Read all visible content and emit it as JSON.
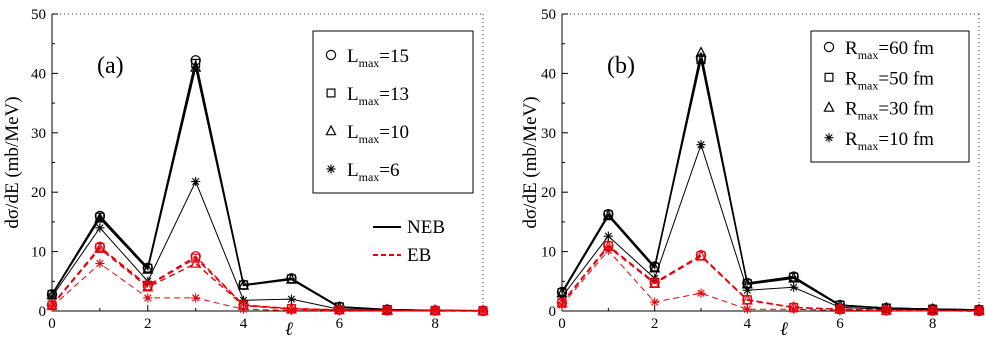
{
  "chart_data": [
    {
      "type": "line",
      "panel_label": "(a)",
      "ylabel": "dσ/dE (mb/MeV)",
      "xlabel": "ℓ",
      "xlim": [
        0,
        9
      ],
      "ylim": [
        0,
        50
      ],
      "xticks": [
        0,
        2,
        4,
        6,
        8
      ],
      "yticks": [
        0,
        10,
        20,
        30,
        40,
        50
      ],
      "x": [
        0,
        1,
        2,
        3,
        4,
        5,
        6,
        7,
        8,
        9
      ],
      "legend": {
        "position": "top-right",
        "entries": [
          {
            "marker": "circle",
            "main": "L",
            "sub": "max",
            "rest": "=15"
          },
          {
            "marker": "square",
            "main": "L",
            "sub": "max",
            "rest": "=13"
          },
          {
            "marker": "triangle",
            "main": "L",
            "sub": "max",
            "rest": "=10"
          },
          {
            "marker": "star",
            "main": "L",
            "sub": "max",
            "rest": "=6"
          }
        ],
        "line_entries": [
          {
            "style": "solid",
            "color": "#000000",
            "label": "NEB"
          },
          {
            "style": "dashed",
            "color": "#e8000b",
            "label": "EB"
          }
        ]
      },
      "series": [
        {
          "kind": "NEB",
          "marker": "circle",
          "values": [
            2.8,
            16.0,
            7.3,
            42.2,
            4.4,
            5.5,
            0.7,
            0.25,
            0.1,
            0.05
          ]
        },
        {
          "kind": "NEB",
          "marker": "square",
          "values": [
            2.8,
            15.8,
            7.2,
            41.7,
            4.4,
            5.4,
            0.7,
            0.25,
            0.1,
            0.05
          ]
        },
        {
          "kind": "NEB",
          "marker": "triangle",
          "values": [
            2.7,
            15.6,
            7.0,
            41.0,
            4.3,
            5.3,
            0.6,
            0.2,
            0.1,
            0.05
          ]
        },
        {
          "kind": "NEB",
          "marker": "star",
          "values": [
            2.4,
            14.0,
            5.0,
            21.8,
            1.8,
            2.0,
            0.3,
            0.1,
            0.05,
            0.0
          ]
        },
        {
          "kind": "EB",
          "marker": "circle",
          "values": [
            1.0,
            10.8,
            4.3,
            9.2,
            1.0,
            0.4,
            0.2,
            0.1,
            0.05,
            0.0
          ]
        },
        {
          "kind": "EB",
          "marker": "square",
          "values": [
            1.0,
            10.7,
            4.2,
            8.9,
            1.0,
            0.4,
            0.2,
            0.1,
            0.05,
            0.0
          ]
        },
        {
          "kind": "EB",
          "marker": "triangle",
          "values": [
            0.9,
            10.5,
            4.0,
            8.0,
            0.9,
            0.3,
            0.15,
            0.05,
            0.0,
            0.0
          ]
        },
        {
          "kind": "EB",
          "marker": "star",
          "values": [
            0.7,
            8.0,
            2.2,
            2.2,
            0.3,
            0.1,
            0.05,
            0.0,
            0.0,
            0.0
          ]
        }
      ]
    },
    {
      "type": "line",
      "panel_label": "(b)",
      "ylabel": "dσ/dE (mb/MeV)",
      "xlabel": "ℓ",
      "xlim": [
        0,
        9
      ],
      "ylim": [
        0,
        50
      ],
      "xticks": [
        0,
        2,
        4,
        6,
        8
      ],
      "yticks": [
        0,
        10,
        20,
        30,
        40,
        50
      ],
      "x": [
        0,
        1,
        2,
        3,
        4,
        5,
        6,
        7,
        8,
        9
      ],
      "legend": {
        "position": "top-right",
        "entries": [
          {
            "marker": "circle",
            "main": "R",
            "sub": "max",
            "rest": "=60 fm"
          },
          {
            "marker": "square",
            "main": "R",
            "sub": "max",
            "rest": "=50 fm"
          },
          {
            "marker": "triangle",
            "main": "R",
            "sub": "max",
            "rest": "=30 fm"
          },
          {
            "marker": "star",
            "main": "R",
            "sub": "max",
            "rest": "=10 fm"
          }
        ],
        "line_entries": []
      },
      "series": [
        {
          "kind": "NEB",
          "marker": "circle",
          "values": [
            3.2,
            16.3,
            7.5,
            42.5,
            4.7,
            5.8,
            1.0,
            0.5,
            0.3,
            0.2
          ]
        },
        {
          "kind": "NEB",
          "marker": "square",
          "values": [
            3.1,
            16.2,
            7.4,
            42.3,
            4.6,
            5.7,
            1.0,
            0.5,
            0.3,
            0.2
          ]
        },
        {
          "kind": "NEB",
          "marker": "triangle",
          "values": [
            3.0,
            16.0,
            7.2,
            43.5,
            4.5,
            5.5,
            0.9,
            0.5,
            0.3,
            0.2
          ]
        },
        {
          "kind": "NEB",
          "marker": "star",
          "values": [
            2.4,
            12.6,
            5.5,
            28.0,
            3.5,
            4.0,
            0.6,
            0.3,
            0.2,
            0.1
          ]
        },
        {
          "kind": "EB",
          "marker": "circle",
          "values": [
            1.4,
            11.0,
            4.8,
            9.4,
            1.9,
            0.6,
            0.3,
            0.1,
            0.05,
            0.0
          ]
        },
        {
          "kind": "EB",
          "marker": "square",
          "values": [
            1.4,
            11.0,
            4.7,
            9.3,
            1.9,
            0.6,
            0.3,
            0.1,
            0.05,
            0.0
          ]
        },
        {
          "kind": "EB",
          "marker": "triangle",
          "values": [
            1.3,
            10.8,
            4.6,
            9.2,
            1.8,
            0.6,
            0.3,
            0.1,
            0.05,
            0.0
          ]
        },
        {
          "kind": "EB",
          "marker": "star",
          "values": [
            1.0,
            10.2,
            1.5,
            3.0,
            0.3,
            0.3,
            0.1,
            0.05,
            0.0,
            0.0
          ]
        }
      ]
    }
  ],
  "colors": {
    "NEB": "#000000",
    "EB": "#e8000b"
  }
}
